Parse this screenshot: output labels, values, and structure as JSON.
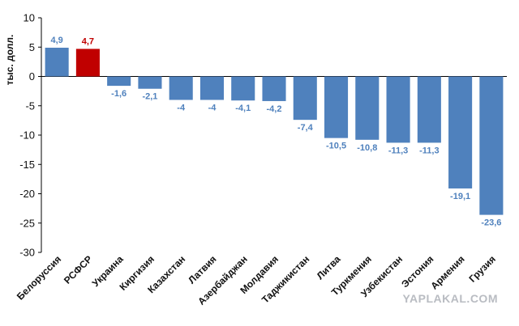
{
  "chart_data": {
    "type": "bar",
    "ylabel": "тыс. долл.",
    "ylim": [
      -30,
      10
    ],
    "yticks": [
      10,
      5,
      0,
      -5,
      -10,
      -15,
      -20,
      -25,
      -30
    ],
    "grid": false,
    "categories": [
      "Белоруссия",
      "РСФСР",
      "Украина",
      "Киргизия",
      "Казахстан",
      "Латвия",
      "Азербайджан",
      "Молдавия",
      "Таджикистан",
      "Литва",
      "Туркмения",
      "Узбекистан",
      "Эстония",
      "Армения",
      "Грузия"
    ],
    "values": [
      4.9,
      4.7,
      -1.6,
      -2.1,
      -4,
      -4,
      -4.1,
      -4.2,
      -7.4,
      -10.5,
      -10.8,
      -11.3,
      -11.3,
      -19.1,
      -23.6
    ],
    "value_labels": [
      "4,9",
      "4,7",
      "-1,6",
      "-2,1",
      "-4",
      "-4",
      "-4,1",
      "-4,2",
      "-7,4",
      "-10,5",
      "-10,8",
      "-11,3",
      "-11,3",
      "-19,1",
      "-23,6"
    ],
    "highlight_index": 1
  },
  "colors": {
    "bar": "#4f81bd",
    "highlight": "#c00000",
    "label": "#4f81bd",
    "highlight_label": "#c00000",
    "axis": "#000000"
  },
  "watermark": "YAPLAKAL.COM"
}
